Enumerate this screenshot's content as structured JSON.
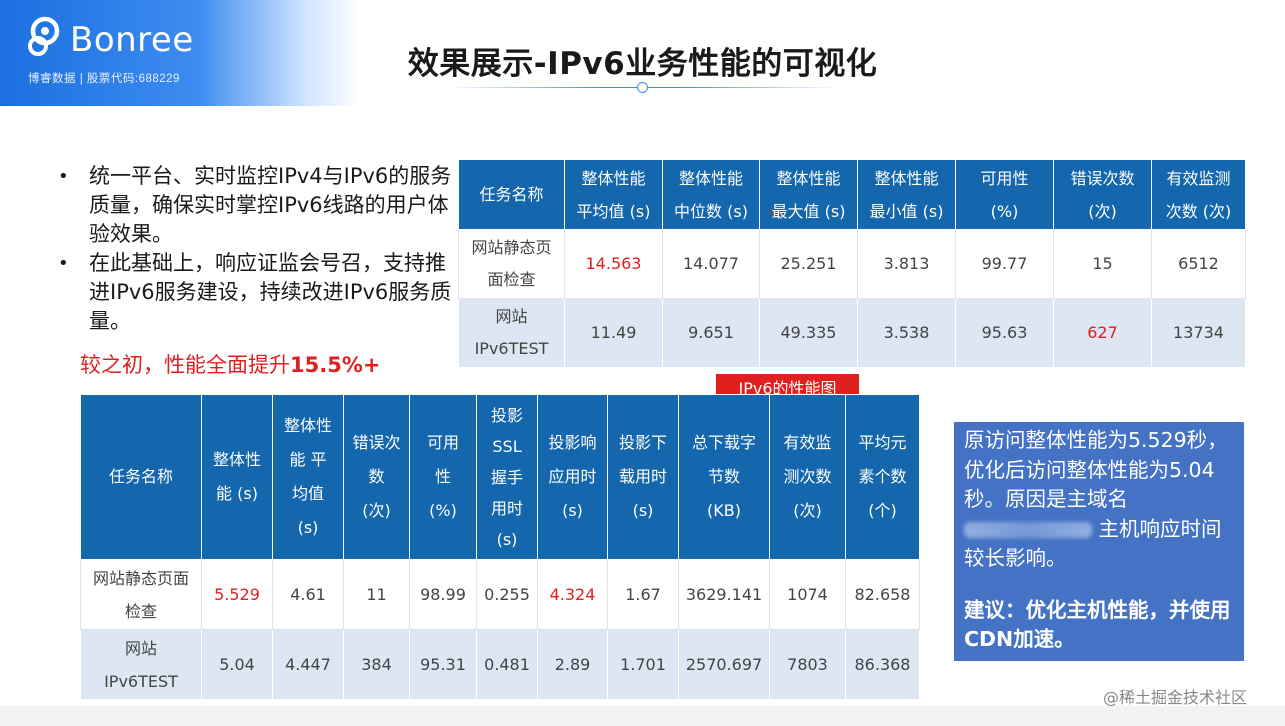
{
  "header": {
    "brand": "Bonree",
    "tagline": "博睿数据 | 股票代码:688229",
    "title": "效果展示-IPv6业务性能的可视化"
  },
  "bullets": [
    "统一平台、实时监控IPv4与IPv6的服务质量，确保实时掌控IPv6线路的用户体验效果。",
    "在此基础上，响应证监会号召，支持推进IPv6服务建设，持续改进IPv6服务质量。"
  ],
  "highlight": {
    "prefix": "较之初，性能全面提升",
    "value": "15.5%+"
  },
  "table1": {
    "headers": [
      [
        "任务名称"
      ],
      [
        "整体性能",
        "平均值 (s)"
      ],
      [
        "整体性能",
        "中位数 (s)"
      ],
      [
        "整体性能",
        "最大值 (s)"
      ],
      [
        "整体性能",
        "最小值 (s)"
      ],
      [
        "可用性",
        "(%)"
      ],
      [
        "错误次数",
        "(次)"
      ],
      [
        "有效监测",
        "次数  (次)"
      ]
    ],
    "rows": [
      [
        [
          "网站静态页",
          "面检查"
        ],
        "14.563",
        "14.077",
        "25.251",
        "3.813",
        "99.77",
        "15",
        "6512"
      ],
      [
        [
          "网站",
          "IPv6TEST"
        ],
        "11.49",
        "9.651",
        "49.335",
        "3.538",
        "95.63",
        "627",
        "13734"
      ]
    ]
  },
  "tag_label": "IPv6的性能图",
  "table2": {
    "headers": [
      [
        "任务名称"
      ],
      [
        "整体性",
        "能 (s)"
      ],
      [
        "整体性",
        "能 平",
        "均值",
        "(s)"
      ],
      [
        "错误次",
        "数",
        "(次)"
      ],
      [
        "可用",
        "性",
        "(%)"
      ],
      [
        "投影",
        "SSL",
        "握手",
        "用时",
        "(s)"
      ],
      [
        "投影响",
        "应用时",
        "(s)"
      ],
      [
        "投影下",
        "载用时",
        "(s)"
      ],
      [
        "总下载字",
        "节数",
        "(KB)"
      ],
      [
        "有效监",
        "测次数",
        "(次)"
      ],
      [
        "平均元",
        "素个数",
        "(个)"
      ]
    ],
    "rows": [
      [
        [
          "网站静态页面",
          "检查"
        ],
        "5.529",
        "4.61",
        "11",
        "98.99",
        "0.255",
        "4.324",
        "1.67",
        "3629.141",
        "1074",
        "82.658"
      ],
      [
        [
          "网站",
          "IPv6TEST"
        ],
        "5.04",
        "4.447",
        "384",
        "95.31",
        "0.481",
        "2.89",
        "1.701",
        "2570.697",
        "7803",
        "86.368"
      ]
    ]
  },
  "note": {
    "text1": "原访问整体性能为5.529秒，优化后访问整体性能为5.04秒。原因是主域名",
    "text2": "主机响应时间较长影响。",
    "advice": "建议：优化主机性能，并使用CDN加速。"
  },
  "watermark": "@稀土掘金技术社区",
  "colors": {
    "header_blue": "#1466ad",
    "row_alt": "#dce7f3",
    "highlight_red": "#e0201f",
    "note_bg": "#4472c4"
  }
}
